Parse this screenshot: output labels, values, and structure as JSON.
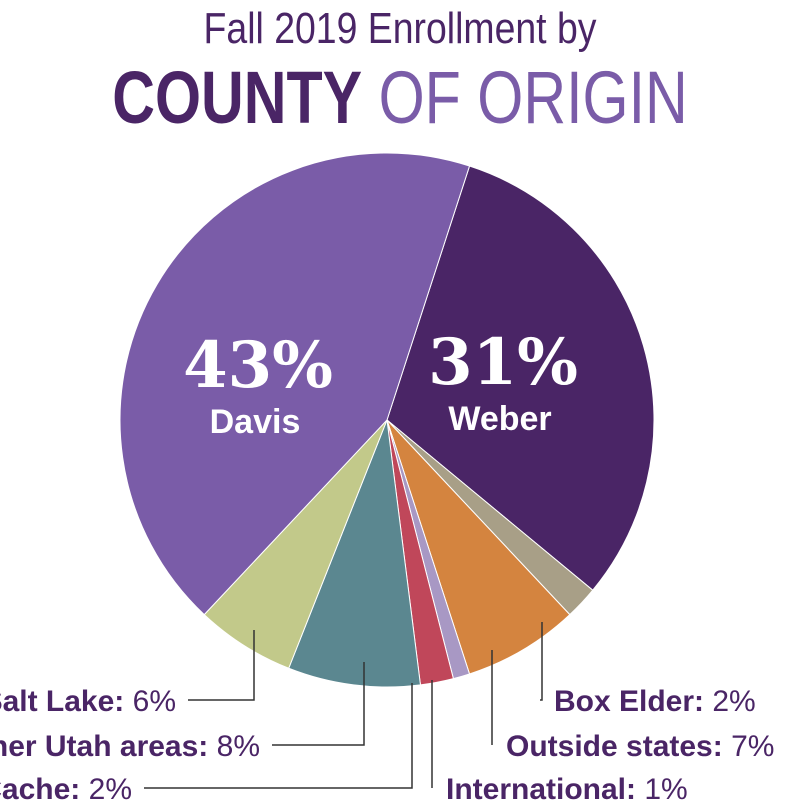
{
  "chart_data": {
    "type": "pie",
    "title_line1": "Fall 2019 Enrollment by",
    "title_bold": "COUNTY",
    "title_rest": "OF ORIGIN",
    "slices": [
      {
        "label": "Weber",
        "value": 31,
        "display": "31%",
        "color": "#4a2566"
      },
      {
        "label": "Box Elder",
        "value": 2,
        "display": "2%",
        "color": "#a89f87"
      },
      {
        "label": "Outside states",
        "value": 7,
        "display": "7%",
        "color": "#d4843f"
      },
      {
        "label": "International",
        "value": 1,
        "display": "1%",
        "color": "#a898c4"
      },
      {
        "label": "Cache",
        "value": 2,
        "display": "2%",
        "color": "#c0475a"
      },
      {
        "label": "Other Utah areas",
        "value": 8,
        "display": "8%",
        "color": "#5b8790"
      },
      {
        "label": "Salt Lake",
        "value": 6,
        "display": "6%",
        "color": "#c2c98a"
      },
      {
        "label": "Davis",
        "value": 43,
        "display": "43%",
        "color": "#7a5ca8"
      }
    ],
    "start_angle_deg": 18
  }
}
